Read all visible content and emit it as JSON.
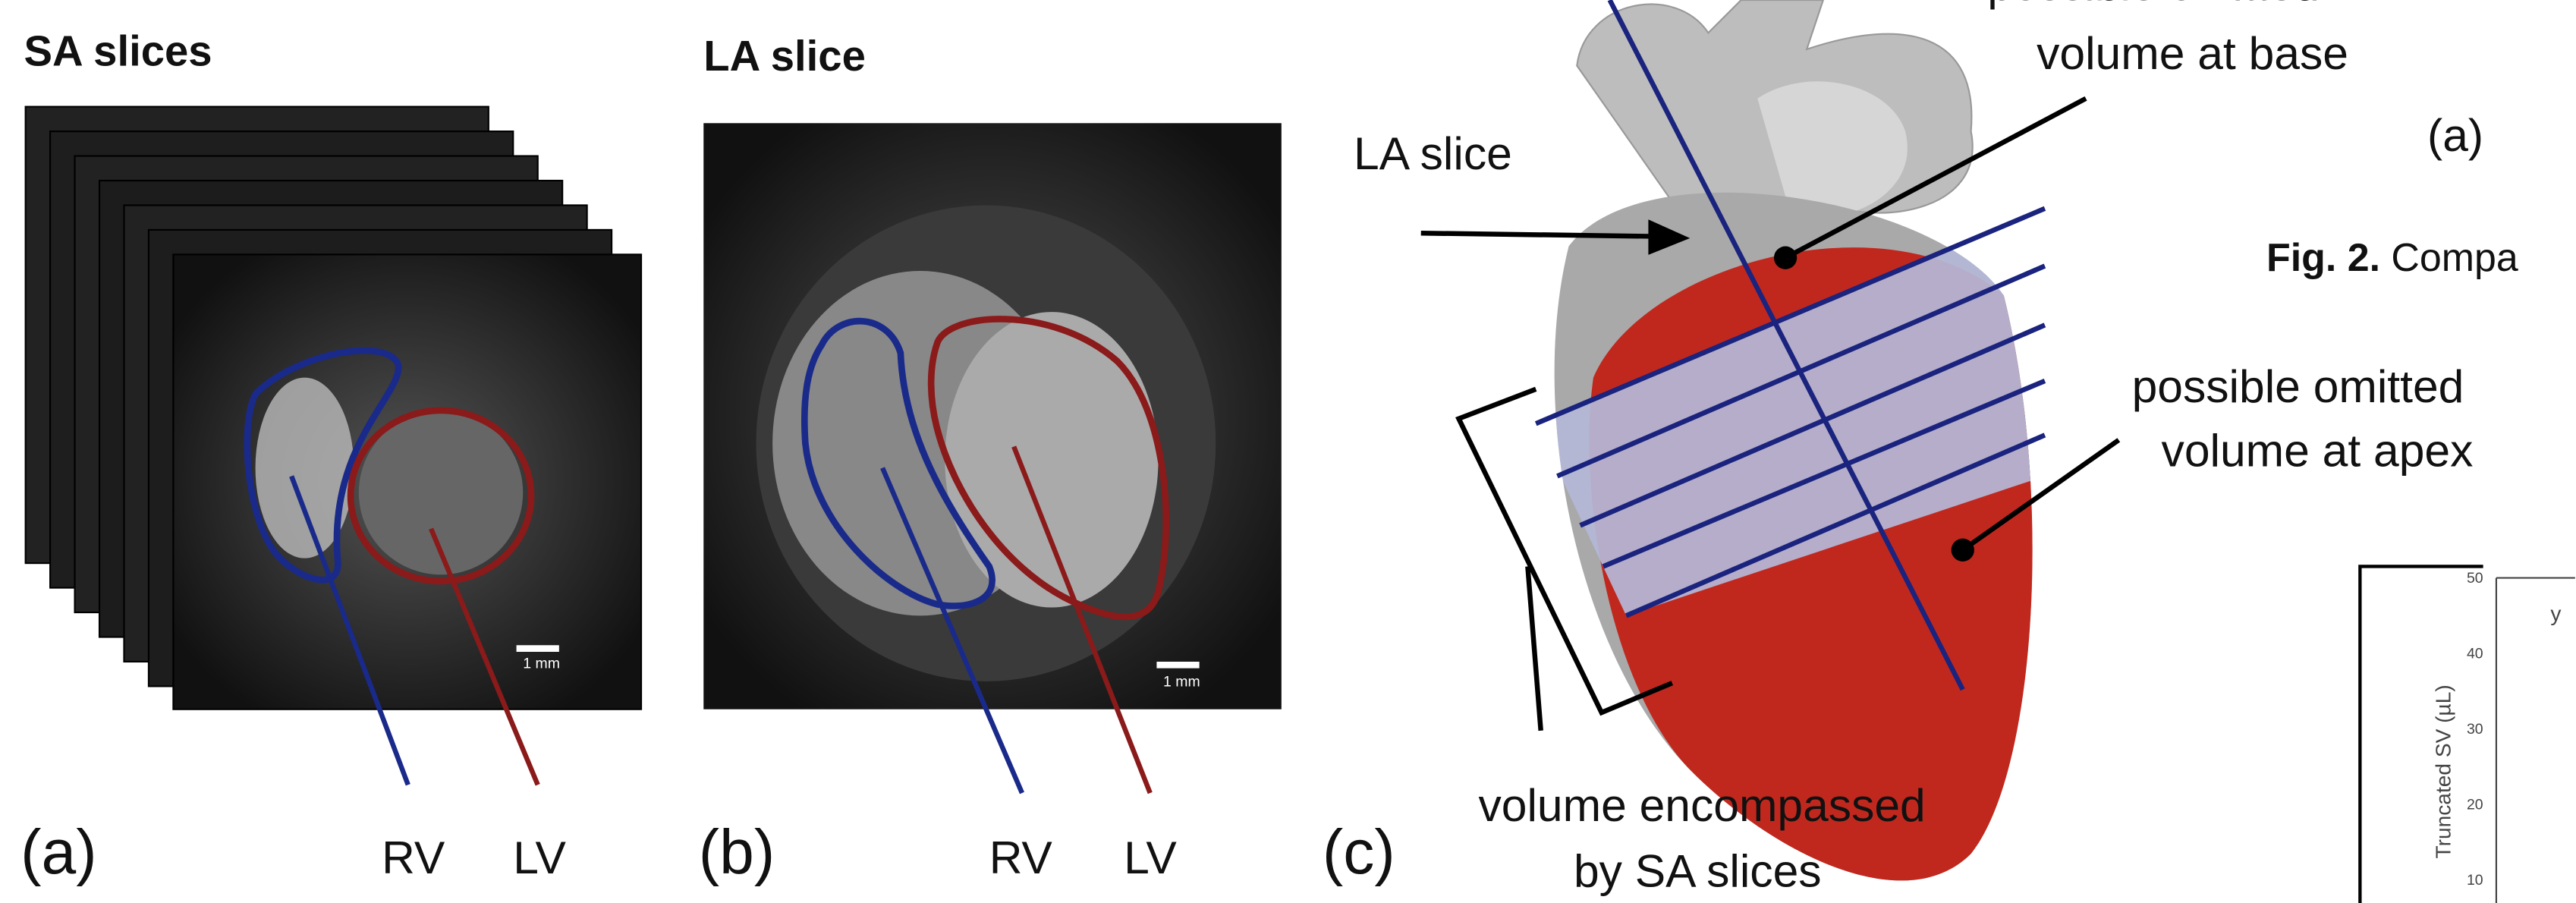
{
  "panel_a": {
    "title": "SA slices",
    "label": "(a)",
    "rv": "RV",
    "lv": "LV",
    "scale": "1 mm"
  },
  "panel_b": {
    "title": "LA slice",
    "label": "(b)",
    "rv": "RV",
    "lv": "LV",
    "scale": "1 mm"
  },
  "panel_c": {
    "label": "(c)",
    "la_slice": "LA slice",
    "base_note": [
      "possible omitted",
      "volume at base"
    ],
    "apex_note": [
      "possible omitted",
      "volume at apex"
    ],
    "sa_note": [
      "volume encompassed",
      "by SA slices"
    ]
  },
  "cropped_right": {
    "label": "(a)",
    "caption_bold": "Fig. 2.",
    "caption": "Compa",
    "chart_y_label": "Truncated SV (µL)",
    "chart_ticks": [
      "50",
      "40",
      "30",
      "20",
      "10"
    ],
    "chart_text": "y"
  }
}
